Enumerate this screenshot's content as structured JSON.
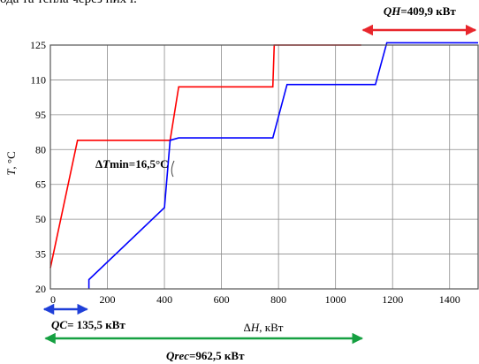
{
  "caption_fragment": "ода та тепла через них і.",
  "chart_data": {
    "type": "line",
    "xlabel_prefix": "Δ",
    "xlabel_var": "H",
    "xlabel_unit": ", кВт",
    "ylabel_var": "T",
    "ylabel_unit": ", °C",
    "xlim": [
      0,
      1500
    ],
    "ylim": [
      20,
      125
    ],
    "grid": true,
    "x_ticks": [
      0,
      200,
      400,
      600,
      800,
      1000,
      1200,
      1400
    ],
    "y_ticks": [
      20,
      35,
      50,
      65,
      80,
      95,
      110,
      125
    ],
    "series": [
      {
        "color": "#ff0000",
        "x": [
          0,
          95,
          420,
          450,
          780,
          785,
          1090
        ],
        "y": [
          29,
          84,
          84,
          107,
          107,
          125,
          125
        ]
      },
      {
        "color": "#0000ff",
        "x": [
          135,
          135,
          400,
          420,
          450,
          780,
          830,
          1140,
          1180,
          1500
        ],
        "y": [
          20,
          24,
          55,
          84,
          85,
          85,
          108,
          108,
          126,
          126
        ]
      }
    ],
    "annotations": {
      "dtmin": {
        "prefix": "Δ",
        "var": "T",
        "text": "min=16,5°C"
      },
      "qh": {
        "var": "QH",
        "text": "=409,9 кВт",
        "x_from": 1090,
        "x_to": 1500,
        "color": "#e8262c"
      },
      "qc": {
        "var": "QC",
        "text": "= 135,5 кВт",
        "x_from": 0,
        "x_to": 135,
        "color": "#1f3fd8"
      },
      "qrec": {
        "var": "Qrec",
        "text": "=962,5 кВт",
        "x_from": 135,
        "x_to": 1090,
        "color": "#15a041"
      }
    }
  }
}
